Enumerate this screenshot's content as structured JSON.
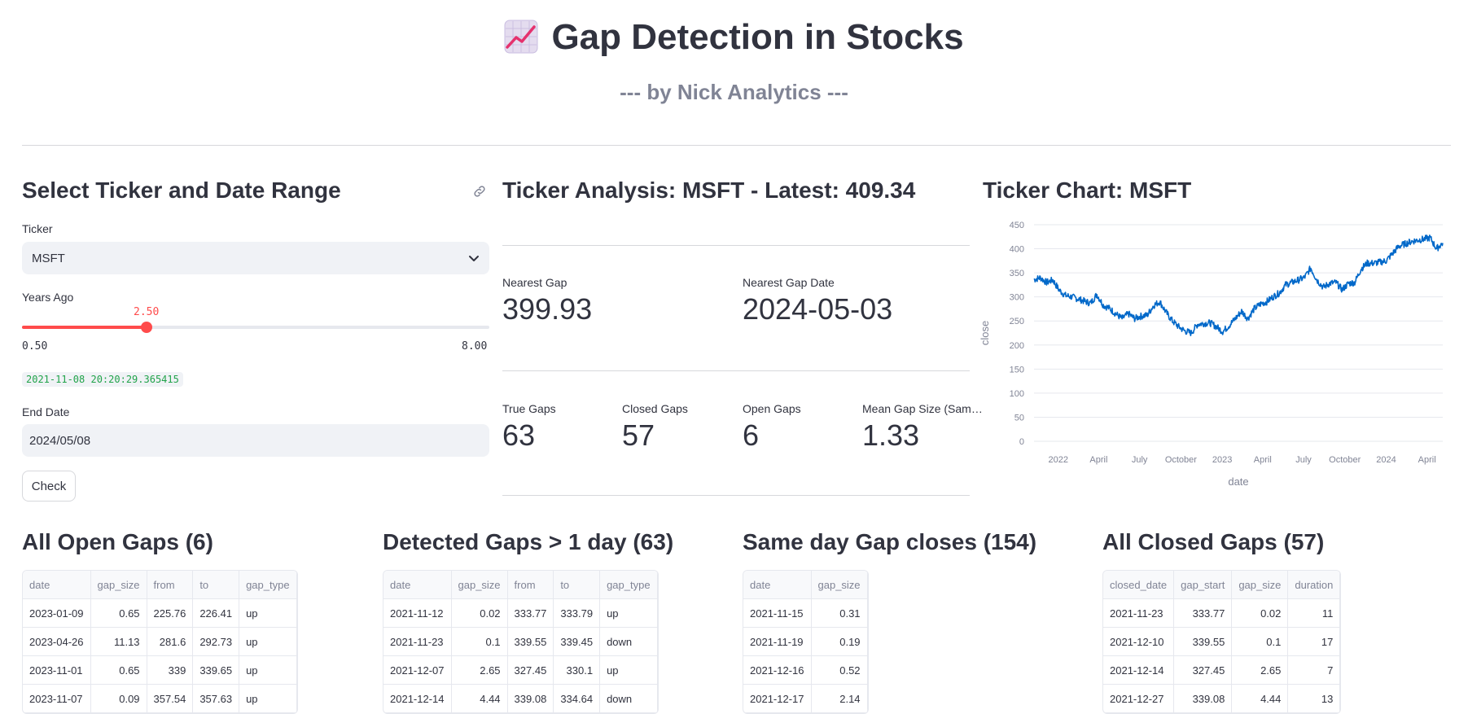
{
  "header": {
    "title": "Gap Detection in Stocks",
    "subtitle": "--- by Nick Analytics ---"
  },
  "sidebar": {
    "heading": "Select Ticker and Date Range",
    "ticker_label": "Ticker",
    "ticker_value": "MSFT",
    "years_label": "Years Ago",
    "years_value": "2.50",
    "years_value_fraction": 0.267,
    "years_min": "0.50",
    "years_max": "8.00",
    "start_datetime": "2021-11-08 20:20:29.365415",
    "end_date_label": "End Date",
    "end_date_value": "2024/05/08",
    "check_button": "Check"
  },
  "analysis": {
    "heading": "Ticker Analysis: MSFT - Latest: 409.34",
    "nearest_gap_label": "Nearest Gap",
    "nearest_gap_value": "399.93",
    "nearest_gap_date_label": "Nearest Gap Date",
    "nearest_gap_date_value": "2024-05-03",
    "true_gaps_label": "True Gaps",
    "true_gaps_value": "63",
    "closed_gaps_label": "Closed Gaps",
    "closed_gaps_value": "57",
    "open_gaps_label": "Open Gaps",
    "open_gaps_value": "6",
    "mean_gap_label": "Mean Gap Size (Sam…",
    "mean_gap_value": "1.33"
  },
  "chart_heading": "Ticker Chart: MSFT",
  "chart_data": {
    "type": "line",
    "title": "",
    "xlabel": "date",
    "ylabel": "close",
    "ylim": [
      0,
      450
    ],
    "yticks": [
      "450",
      "400",
      "350",
      "300",
      "250",
      "200",
      "150",
      "100",
      "50",
      "0"
    ],
    "xticks": [
      "2022",
      "April",
      "July",
      "October",
      "2023",
      "April",
      "July",
      "October",
      "2024",
      "April"
    ],
    "grid": true,
    "color": "#0068c9",
    "series": [
      {
        "x": [
          "2021-11-08",
          "2021-11-22",
          "2021-12-06",
          "2021-12-20",
          "2022-01-03",
          "2022-01-17",
          "2022-01-31",
          "2022-02-14",
          "2022-02-28",
          "2022-03-14",
          "2022-03-28",
          "2022-04-11",
          "2022-04-25",
          "2022-05-09",
          "2022-05-23",
          "2022-06-06",
          "2022-06-20",
          "2022-07-04",
          "2022-07-18",
          "2022-08-01",
          "2022-08-15",
          "2022-08-29",
          "2022-09-12",
          "2022-09-26",
          "2022-10-10",
          "2022-10-24",
          "2022-11-07",
          "2022-11-21",
          "2022-12-05",
          "2022-12-19",
          "2023-01-02",
          "2023-01-16",
          "2023-01-30",
          "2023-02-13",
          "2023-02-27",
          "2023-03-13",
          "2023-03-27",
          "2023-04-10",
          "2023-04-24",
          "2023-05-08",
          "2023-05-22",
          "2023-06-05",
          "2023-06-19",
          "2023-07-03",
          "2023-07-17",
          "2023-07-31",
          "2023-08-14",
          "2023-08-28",
          "2023-09-11",
          "2023-09-25",
          "2023-10-09",
          "2023-10-23",
          "2023-11-06",
          "2023-11-20",
          "2023-12-04",
          "2023-12-18",
          "2024-01-01",
          "2024-01-15",
          "2024-01-29",
          "2024-02-12",
          "2024-02-26",
          "2024-03-11",
          "2024-03-25",
          "2024-04-08",
          "2024-04-22",
          "2024-05-06"
        ],
        "y": [
          336,
          340,
          330,
          335,
          314,
          303,
          300,
          296,
          291,
          287,
          305,
          283,
          276,
          265,
          255,
          265,
          255,
          260,
          262,
          282,
          290,
          268,
          250,
          238,
          229,
          225,
          243,
          245,
          246,
          238,
          228,
          240,
          255,
          270,
          255,
          275,
          285,
          290,
          300,
          308,
          325,
          330,
          335,
          340,
          360,
          335,
          320,
          328,
          330,
          315,
          328,
          330,
          358,
          370,
          370,
          372,
          375,
          390,
          405,
          410,
          415,
          418,
          420,
          423,
          400,
          412
        ]
      }
    ]
  },
  "tables": {
    "open": {
      "heading": "All Open Gaps (6)",
      "columns": [
        "date",
        "gap_size",
        "from",
        "to",
        "gap_type"
      ],
      "rows": [
        [
          "2023-01-09",
          "0.65",
          "225.76",
          "226.41",
          "up"
        ],
        [
          "2023-04-26",
          "11.13",
          "281.6",
          "292.73",
          "up"
        ],
        [
          "2023-11-01",
          "0.65",
          "339",
          "339.65",
          "up"
        ],
        [
          "2023-11-07",
          "0.09",
          "357.54",
          "357.63",
          "up"
        ]
      ]
    },
    "detected": {
      "heading": "Detected Gaps > 1 day (63)",
      "columns": [
        "date",
        "gap_size",
        "from",
        "to",
        "gap_type"
      ],
      "rows": [
        [
          "2021-11-12",
          "0.02",
          "333.77",
          "333.79",
          "up"
        ],
        [
          "2021-11-23",
          "0.1",
          "339.55",
          "339.45",
          "down"
        ],
        [
          "2021-12-07",
          "2.65",
          "327.45",
          "330.1",
          "up"
        ],
        [
          "2021-12-14",
          "4.44",
          "339.08",
          "334.64",
          "down"
        ]
      ]
    },
    "sameday": {
      "heading": "Same day Gap closes (154)",
      "columns": [
        "date",
        "gap_size"
      ],
      "rows": [
        [
          "2021-11-15",
          "0.31"
        ],
        [
          "2021-11-19",
          "0.19"
        ],
        [
          "2021-12-16",
          "0.52"
        ],
        [
          "2021-12-17",
          "2.14"
        ]
      ]
    },
    "closed": {
      "heading": "All Closed Gaps (57)",
      "columns": [
        "closed_date",
        "gap_start",
        "gap_size",
        "duration"
      ],
      "rows": [
        [
          "2021-11-23",
          "333.77",
          "0.02",
          "11"
        ],
        [
          "2021-12-10",
          "339.55",
          "0.1",
          "17"
        ],
        [
          "2021-12-14",
          "327.45",
          "2.65",
          "7"
        ],
        [
          "2021-12-27",
          "339.08",
          "4.44",
          "13"
        ]
      ]
    }
  }
}
